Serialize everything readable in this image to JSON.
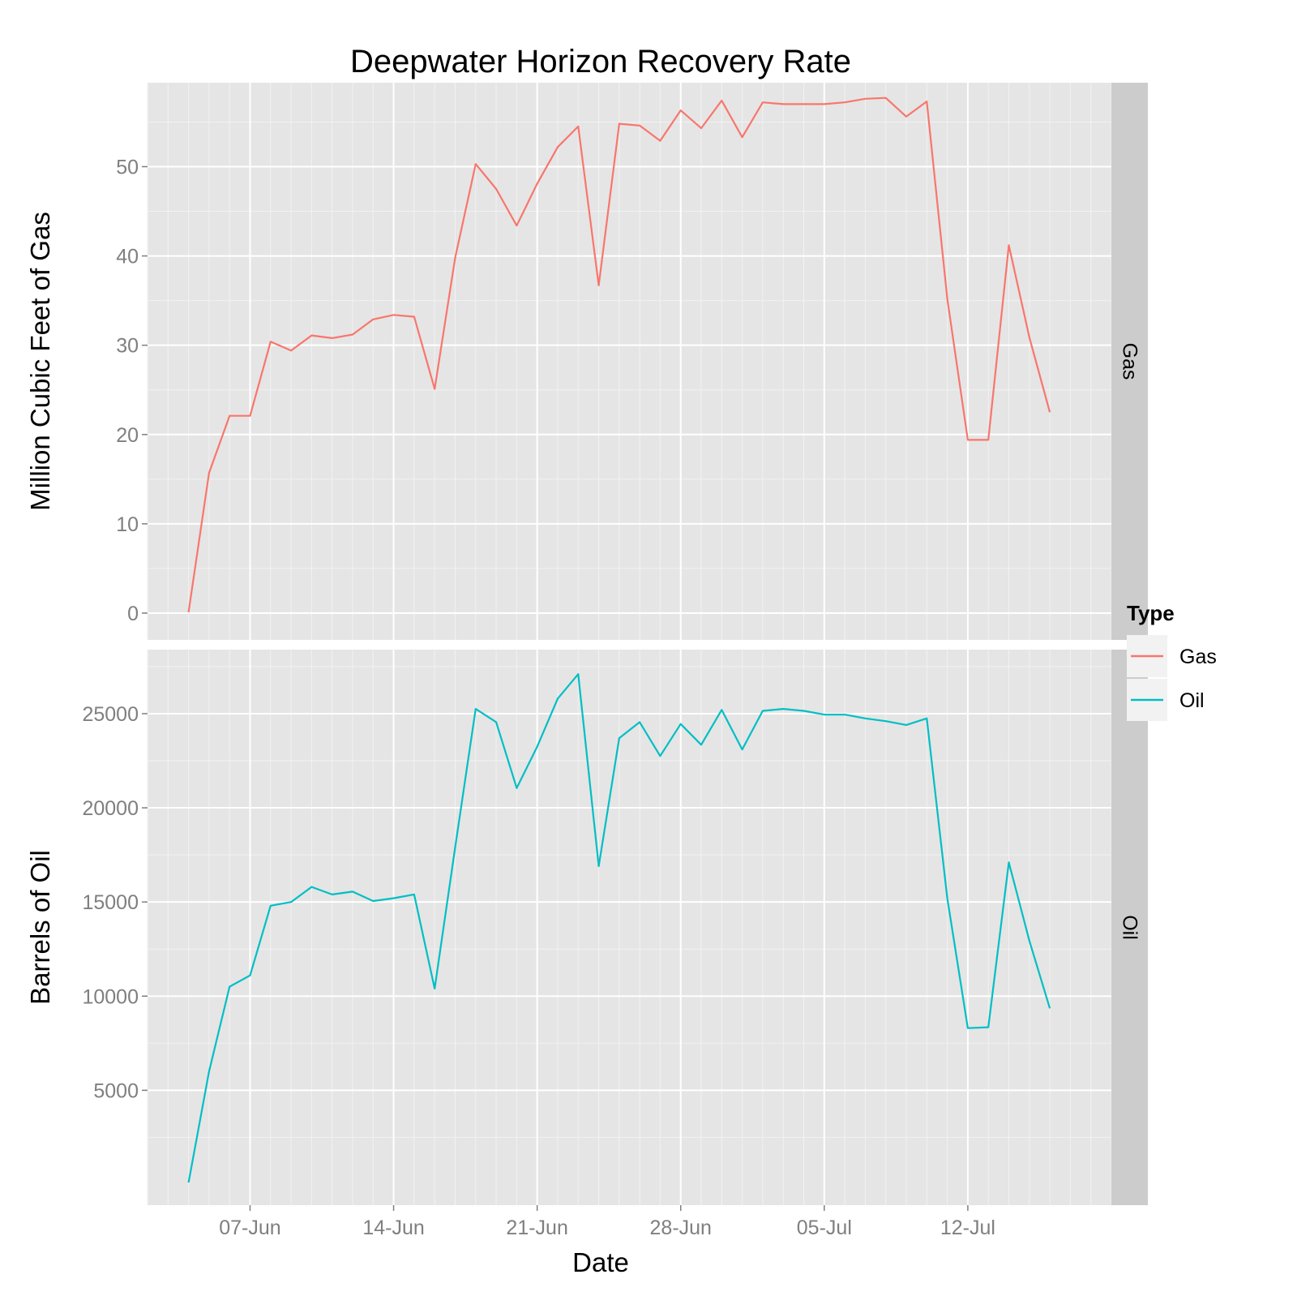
{
  "chart_data": {
    "type": "line",
    "title": "Deepwater Horizon Recovery Rate",
    "xlabel": "Date",
    "x_ticks": [
      "07-Jun",
      "14-Jun",
      "21-Jun",
      "28-Jun",
      "05-Jul",
      "12-Jul"
    ],
    "x_range": [
      "2010-06-02",
      "2010-07-19"
    ],
    "grid": true,
    "legend": {
      "title": "Type",
      "position": "right",
      "entries": [
        {
          "label": "Gas",
          "color": "#F8766D"
        },
        {
          "label": "Oil",
          "color": "#00BFC4"
        }
      ]
    },
    "x": [
      "2010-06-04",
      "2010-06-05",
      "2010-06-06",
      "2010-06-07",
      "2010-06-08",
      "2010-06-09",
      "2010-06-10",
      "2010-06-11",
      "2010-06-12",
      "2010-06-13",
      "2010-06-14",
      "2010-06-15",
      "2010-06-16",
      "2010-06-17",
      "2010-06-18",
      "2010-06-19",
      "2010-06-20",
      "2010-06-21",
      "2010-06-22",
      "2010-06-23",
      "2010-06-24",
      "2010-06-25",
      "2010-06-26",
      "2010-06-27",
      "2010-06-28",
      "2010-06-29",
      "2010-06-30",
      "2010-07-01",
      "2010-07-02",
      "2010-07-03",
      "2010-07-04",
      "2010-07-05",
      "2010-07-06",
      "2010-07-07",
      "2010-07-08",
      "2010-07-09",
      "2010-07-10",
      "2010-07-11",
      "2010-07-12",
      "2010-07-13",
      "2010-07-14",
      "2010-07-15",
      "2010-07-16"
    ],
    "panels": [
      {
        "strip": "Gas",
        "ylabel": "Million Cubic Feet of Gas",
        "ylim": [
          -3,
          59.4
        ],
        "y_ticks": [
          0,
          10,
          20,
          30,
          40,
          50
        ],
        "y_tick_labels": [
          "0",
          "10",
          "20",
          "30",
          "40",
          "50"
        ],
        "series": [
          {
            "name": "Gas",
            "color": "#F8766D",
            "values": [
              0.1,
              15.7,
              22.1,
              22.1,
              30.4,
              29.4,
              31.1,
              30.8,
              31.2,
              32.9,
              33.4,
              33.2,
              25.1,
              39.8,
              50.3,
              47.5,
              43.4,
              48.1,
              52.2,
              54.5,
              36.7,
              54.8,
              54.6,
              52.9,
              56.3,
              54.3,
              57.4,
              53.3,
              57.2,
              57.0,
              57.0,
              57.0,
              57.2,
              57.6,
              57.7,
              55.6,
              57.3,
              35.2,
              19.4,
              19.4,
              41.2,
              30.9,
              22.5
            ]
          }
        ]
      },
      {
        "strip": "Oil",
        "ylabel": "Barrels of Oil",
        "ylim": [
          -1100,
          28400
        ],
        "y_ticks": [
          5000,
          10000,
          15000,
          20000,
          25000
        ],
        "y_tick_labels": [
          "5000",
          "10000",
          "15000",
          "20000",
          "25000"
        ],
        "series": [
          {
            "name": "Oil",
            "color": "#00BFC4",
            "values": [
              100,
              6000,
              10500,
              11100,
              14800,
              15000,
              15800,
              15400,
              15550,
              15050,
              15200,
              15400,
              10400,
              17900,
              25250,
              24550,
              21050,
              23250,
              25800,
              27100,
              16900,
              23700,
              24550,
              22750,
              24450,
              23350,
              25200,
              23100,
              25150,
              25250,
              25150,
              24950,
              24950,
              24750,
              24600,
              24400,
              24750,
              15200,
              8300,
              8350,
              17100,
              12950,
              9350
            ]
          }
        ]
      }
    ]
  }
}
